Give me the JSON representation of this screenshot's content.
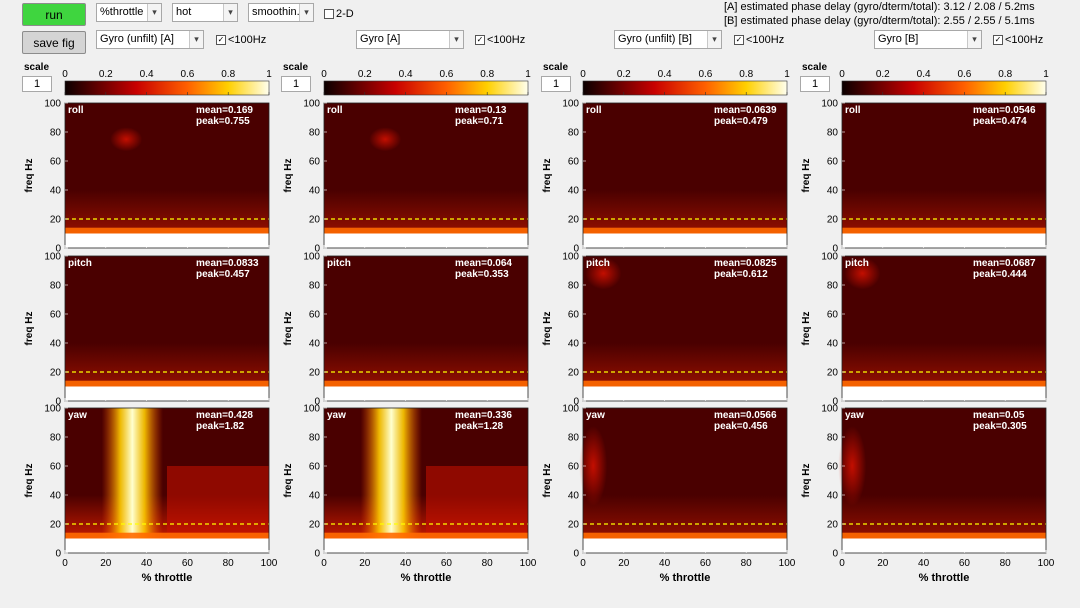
{
  "controls": {
    "run_label": "run",
    "save_label": "save fig",
    "xaxis_select": "%throttle",
    "colormap_select": "hot",
    "smoothing_select": "smoothin...",
    "twod_label": "2-D"
  },
  "phase_delay": {
    "line_a": "[A] estimated phase delay (gyro/dterm/total): 3.12 / 2.08 / 5.2ms",
    "line_b": "[B] estimated phase delay (gyro/dterm/total): 2.55 / 2.55 / 5.1ms"
  },
  "columns": [
    {
      "signal": "Gyro (unfilt) [A]",
      "lt100": "<100Hz",
      "scale_label": "scale",
      "scale_value": "1",
      "cb_ticks": [
        "0",
        "0.2",
        "0.4",
        "0.6",
        "0.8",
        "1"
      ]
    },
    {
      "signal": "Gyro [A]",
      "lt100": "<100Hz",
      "scale_label": "scale",
      "scale_value": "1",
      "cb_ticks": [
        "0",
        "0.2",
        "0.4",
        "0.6",
        "0.8",
        "1"
      ]
    },
    {
      "signal": "Gyro (unfilt) [B]",
      "lt100": "<100Hz",
      "scale_label": "scale",
      "scale_value": "1",
      "cb_ticks": [
        "0",
        "0.2",
        "0.4",
        "0.6",
        "0.8",
        "1"
      ]
    },
    {
      "signal": "Gyro [B]",
      "lt100": "<100Hz",
      "scale_label": "scale",
      "scale_value": "1",
      "cb_ticks": [
        "0",
        "0.2",
        "0.4",
        "0.6",
        "0.8",
        "1"
      ]
    }
  ],
  "colors": {
    "accent": "#3fd53f",
    "dashed": "#ffff00",
    "background": "#f0f0f0"
  },
  "chart_data": {
    "type": "heatmap",
    "xlabel": "% throttle",
    "ylabel": "freq Hz",
    "xlim": [
      0,
      100
    ],
    "ylim": [
      0,
      100
    ],
    "xticks": [
      0,
      20,
      40,
      60,
      80,
      100
    ],
    "yticks": [
      0,
      20,
      40,
      60,
      80,
      100
    ],
    "cutoff_line_hz": 20,
    "colorbar_range": [
      0,
      1
    ],
    "panels": [
      {
        "col": 0,
        "axis": "roll",
        "mean": "mean=0.169",
        "peak": "peak=0.755"
      },
      {
        "col": 1,
        "axis": "roll",
        "mean": "mean=0.13",
        "peak": "peak=0.71"
      },
      {
        "col": 2,
        "axis": "roll",
        "mean": "mean=0.0639",
        "peak": "peak=0.479"
      },
      {
        "col": 3,
        "axis": "roll",
        "mean": "mean=0.0546",
        "peak": "peak=0.474"
      },
      {
        "col": 0,
        "axis": "pitch",
        "mean": "mean=0.0833",
        "peak": "peak=0.457"
      },
      {
        "col": 1,
        "axis": "pitch",
        "mean": "mean=0.064",
        "peak": "peak=0.353"
      },
      {
        "col": 2,
        "axis": "pitch",
        "mean": "mean=0.0825",
        "peak": "peak=0.612"
      },
      {
        "col": 3,
        "axis": "pitch",
        "mean": "mean=0.0687",
        "peak": "peak=0.444"
      },
      {
        "col": 0,
        "axis": "yaw",
        "mean": "mean=0.428",
        "peak": "peak=1.82"
      },
      {
        "col": 1,
        "axis": "yaw",
        "mean": "mean=0.336",
        "peak": "peak=1.28"
      },
      {
        "col": 2,
        "axis": "yaw",
        "mean": "mean=0.0566",
        "peak": "peak=0.456"
      },
      {
        "col": 3,
        "axis": "yaw",
        "mean": "mean=0.05",
        "peak": "peak=0.305"
      }
    ]
  }
}
